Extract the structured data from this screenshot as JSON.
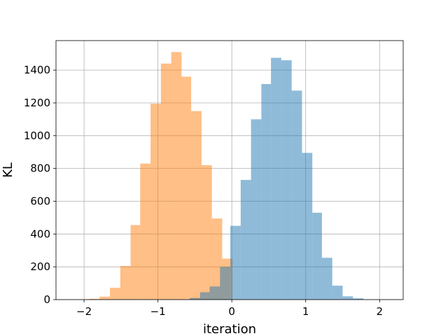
{
  "chart_data": {
    "type": "bar",
    "title": "",
    "xlabel": "iteration",
    "ylabel": "KL",
    "xlim": [
      -2.38,
      2.32
    ],
    "ylim": [
      0,
      1580
    ],
    "xticks": [
      -2,
      -1,
      0,
      1,
      2
    ],
    "xtick_labels": [
      "−2",
      "−1",
      "0",
      "1",
      "2"
    ],
    "yticks": [
      0,
      200,
      400,
      600,
      800,
      1000,
      1200,
      1400
    ],
    "ytick_labels": [
      "0",
      "200",
      "400",
      "600",
      "800",
      "1000",
      "1200",
      "1400"
    ],
    "grid": true,
    "legend": "none",
    "series": [
      {
        "color": "#ff7f0e",
        "alpha": 0.5,
        "bin_edges": [
          -2.07,
          -1.93,
          -1.79,
          -1.65,
          -1.51,
          -1.37,
          -1.24,
          -1.1,
          -0.96,
          -0.82,
          -0.68,
          -0.55,
          -0.41,
          -0.27,
          -0.13,
          0.01
        ],
        "counts": [
          2,
          5,
          18,
          72,
          205,
          455,
          830,
          1195,
          1440,
          1510,
          1360,
          1150,
          820,
          495,
          250
        ]
      },
      {
        "color": "#1f77b4",
        "alpha": 0.5,
        "bin_edges": [
          -0.57,
          -0.43,
          -0.3,
          -0.16,
          -0.02,
          0.12,
          0.26,
          0.4,
          0.53,
          0.67,
          0.81,
          0.95,
          1.09,
          1.22,
          1.36,
          1.5,
          1.64,
          1.78
        ],
        "counts": [
          10,
          45,
          80,
          200,
          450,
          730,
          1100,
          1315,
          1475,
          1460,
          1275,
          895,
          530,
          255,
          85,
          20,
          8
        ]
      }
    ]
  }
}
